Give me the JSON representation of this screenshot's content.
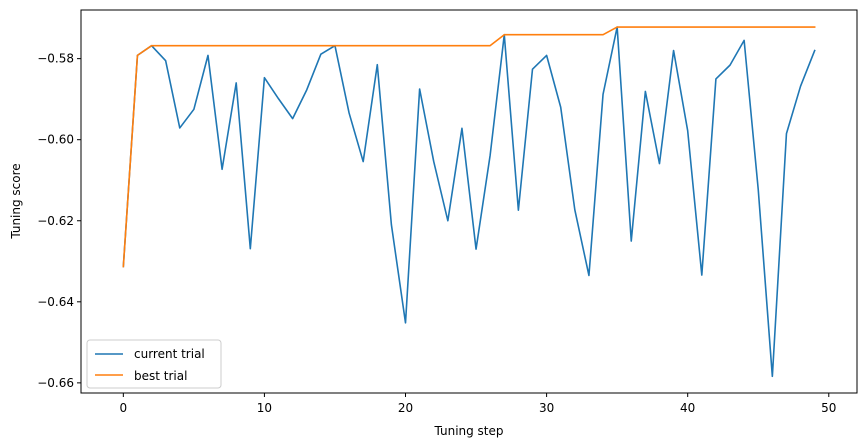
{
  "chart_data": {
    "type": "line",
    "title": "",
    "xlabel": "Tuning step",
    "ylabel": "Tuning score",
    "xlim": [
      -3.0,
      52.0
    ],
    "ylim": [
      -0.6625,
      -0.568
    ],
    "xticks": [
      0,
      10,
      20,
      30,
      40,
      50
    ],
    "xtick_labels": [
      "0",
      "10",
      "20",
      "30",
      "40",
      "50"
    ],
    "yticks": [
      -0.66,
      -0.64,
      -0.62,
      -0.6,
      -0.58
    ],
    "ytick_labels": [
      "−0.66",
      "−0.64",
      "−0.62",
      "−0.60",
      "−0.58"
    ],
    "grid": false,
    "legend_position": "lower-left",
    "x": [
      0,
      1,
      2,
      3,
      4,
      5,
      6,
      7,
      8,
      9,
      10,
      11,
      12,
      13,
      14,
      15,
      16,
      17,
      18,
      19,
      20,
      21,
      22,
      23,
      24,
      25,
      26,
      27,
      28,
      29,
      30,
      31,
      32,
      33,
      34,
      35,
      36,
      37,
      38,
      39,
      40,
      41,
      42,
      43,
      44,
      45,
      46,
      47,
      48,
      49
    ],
    "series": [
      {
        "name": "current trial",
        "color": "#1f77b4",
        "values": [
          -0.6313,
          -0.5792,
          -0.5768,
          -0.5805,
          -0.5971,
          -0.5925,
          -0.5792,
          -0.6073,
          -0.586,
          -0.6269,
          -0.5847,
          -0.5899,
          -0.5948,
          -0.5877,
          -0.5789,
          -0.5768,
          -0.5934,
          -0.6054,
          -0.5815,
          -0.621,
          -0.6452,
          -0.5875,
          -0.6054,
          -0.62,
          -0.5972,
          -0.627,
          -0.6038,
          -0.5741,
          -0.6174,
          -0.5826,
          -0.5792,
          -0.592,
          -0.6173,
          -0.6335,
          -0.5888,
          -0.5722,
          -0.625,
          -0.5881,
          -0.6059,
          -0.578,
          -0.5978,
          -0.6334,
          -0.585,
          -0.5816,
          -0.5755,
          -0.6123,
          -0.6584,
          -0.5985,
          -0.5868,
          -0.578
        ]
      },
      {
        "name": "best trial",
        "color": "#ff7f0e",
        "values": [
          -0.6313,
          -0.5792,
          -0.5768,
          -0.5768,
          -0.5768,
          -0.5768,
          -0.5768,
          -0.5768,
          -0.5768,
          -0.5768,
          -0.5768,
          -0.5768,
          -0.5768,
          -0.5768,
          -0.5768,
          -0.5768,
          -0.5768,
          -0.5768,
          -0.5768,
          -0.5768,
          -0.5768,
          -0.5768,
          -0.5768,
          -0.5768,
          -0.5768,
          -0.5768,
          -0.5768,
          -0.5741,
          -0.5741,
          -0.5741,
          -0.5741,
          -0.5741,
          -0.5741,
          -0.5741,
          -0.5741,
          -0.5722,
          -0.5722,
          -0.5722,
          -0.5722,
          -0.5722,
          -0.5722,
          -0.5722,
          -0.5722,
          -0.5722,
          -0.5722,
          -0.5722,
          -0.5722,
          -0.5722,
          -0.5722,
          -0.5722
        ]
      }
    ]
  }
}
